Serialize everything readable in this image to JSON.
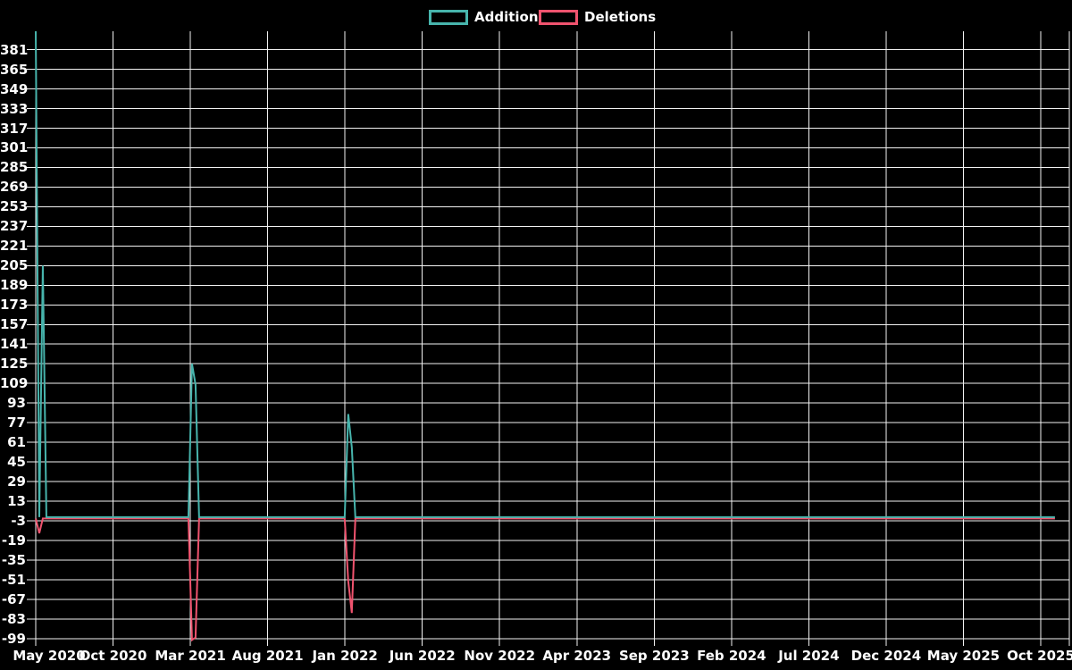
{
  "chart_data": {
    "type": "line",
    "title": "",
    "background_color": "#000000",
    "text_color": "#ffffff",
    "grid": true,
    "grid_color": "#f2f2f2",
    "legend_position": "top-center",
    "legend": [
      {
        "label": "Additions",
        "color": "#47b4ac"
      },
      {
        "label": "Deletions",
        "color": "#f0536e"
      }
    ],
    "x_axis": {
      "tick_labels": [
        "May 2020",
        "Oct 2020",
        "Mar 2021",
        "Aug 2021",
        "Jan 2022",
        "Jun 2022",
        "Nov 2022",
        "Apr 2023",
        "Sep 2023",
        "Feb 2024",
        "Jul 2024",
        "Dec 2024",
        "May 2025",
        "Oct 2025"
      ],
      "unit": "week",
      "weeks_total": 288
    },
    "y_axis": {
      "tick_labels": [
        "381",
        "365",
        "349",
        "333",
        "317",
        "301",
        "285",
        "269",
        "253",
        "237",
        "221",
        "205",
        "189",
        "173",
        "157",
        "141",
        "125",
        "109",
        "93",
        "77",
        "61",
        "45",
        "29",
        "13",
        "-3",
        "-19",
        "-35",
        "-51",
        "-67",
        "-83",
        "-99"
      ],
      "tick_step": 16,
      "range": [
        -102,
        396
      ]
    },
    "series": [
      {
        "name": "Additions",
        "color": "#47b4ac",
        "default_value": 0,
        "nonzero_points": [
          {
            "week": 0,
            "value": 396
          },
          {
            "week": 2,
            "value": 205
          },
          {
            "week": 44,
            "value": 125
          },
          {
            "week": 45,
            "value": 108
          },
          {
            "week": 88,
            "value": 84
          },
          {
            "week": 89,
            "value": 57
          }
        ]
      },
      {
        "name": "Deletions",
        "color": "#f0536e",
        "default_value": 0,
        "nonzero_points": [
          {
            "week": 1,
            "value": -12
          },
          {
            "week": 44,
            "value": -99
          },
          {
            "week": 45,
            "value": -97
          },
          {
            "week": 88,
            "value": -51
          },
          {
            "week": 89,
            "value": -77
          }
        ]
      }
    ]
  }
}
